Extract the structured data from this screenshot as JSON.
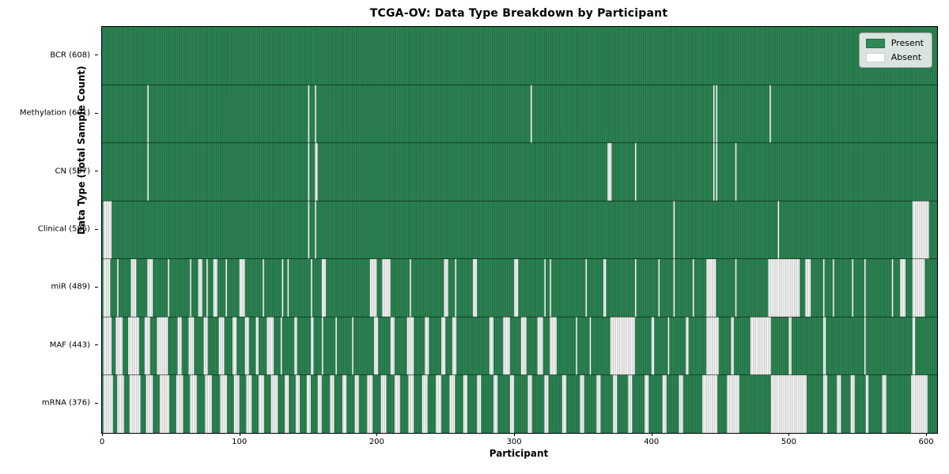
{
  "title": "TCGA-OV: Data Type Breakdown by Participant",
  "chart_data": {
    "type": "heatmap",
    "title": "TCGA-OV: Data Type Breakdown by Participant",
    "xlabel": "Participant",
    "ylabel": "Data Type (Total Sample Count)",
    "x_ticks": [
      0,
      100,
      200,
      300,
      400,
      500,
      600
    ],
    "x_range": [
      0,
      608
    ],
    "n_participants": 608,
    "grid": false,
    "legend": {
      "position": "upper right",
      "present_label": "Present",
      "absent_label": "Absent"
    },
    "colors": {
      "present": "#2e8b57",
      "absent": "#ffffff",
      "cell_edge": "rgba(0,0,0,0.38)",
      "row_separator": "rgba(0,0,0,0.85)",
      "legend_bg": "#eaedea"
    },
    "rows": [
      {
        "label": "BCR (608)",
        "name": "BCR",
        "present_count": 608,
        "absent_ranges": []
      },
      {
        "label": "Methylation (601)",
        "name": "Methylation",
        "present_count": 601,
        "absent_ranges": [
          [
            33,
            33
          ],
          [
            150,
            150
          ],
          [
            155,
            155
          ],
          [
            312,
            312
          ],
          [
            445,
            445
          ],
          [
            447,
            447
          ],
          [
            486,
            486
          ]
        ]
      },
      {
        "label": "CN (597)",
        "name": "CN",
        "present_count": 597,
        "absent_ranges": [
          [
            33,
            33
          ],
          [
            150,
            150
          ],
          [
            155,
            156
          ],
          [
            368,
            370
          ],
          [
            388,
            388
          ],
          [
            445,
            445
          ],
          [
            447,
            447
          ],
          [
            461,
            461
          ]
        ]
      },
      {
        "label": "Clinical (586)",
        "name": "Clinical",
        "present_count": 586,
        "absent_ranges": [
          [
            1,
            6
          ],
          [
            150,
            150
          ],
          [
            155,
            155
          ],
          [
            416,
            416
          ],
          [
            492,
            492
          ],
          [
            590,
            601
          ]
        ]
      },
      {
        "label": "miR (489)",
        "name": "miR",
        "present_count": 489,
        "absent_ranges": [
          [
            1,
            5
          ],
          [
            11,
            11
          ],
          [
            21,
            24
          ],
          [
            33,
            36
          ],
          [
            48,
            48
          ],
          [
            64,
            64
          ],
          [
            70,
            72
          ],
          [
            76,
            76
          ],
          [
            81,
            83
          ],
          [
            90,
            90
          ],
          [
            100,
            103
          ],
          [
            117,
            117
          ],
          [
            131,
            131
          ],
          [
            135,
            135
          ],
          [
            152,
            152
          ],
          [
            160,
            162
          ],
          [
            195,
            199
          ],
          [
            204,
            209
          ],
          [
            224,
            224
          ],
          [
            249,
            251
          ],
          [
            257,
            257
          ],
          [
            270,
            272
          ],
          [
            300,
            302
          ],
          [
            322,
            322
          ],
          [
            326,
            326
          ],
          [
            352,
            352
          ],
          [
            365,
            366
          ],
          [
            388,
            388
          ],
          [
            405,
            405
          ],
          [
            416,
            416
          ],
          [
            430,
            430
          ],
          [
            440,
            446
          ],
          [
            461,
            461
          ],
          [
            485,
            507
          ],
          [
            512,
            515
          ],
          [
            525,
            525
          ],
          [
            532,
            532
          ],
          [
            546,
            546
          ],
          [
            555,
            555
          ],
          [
            575,
            575
          ],
          [
            581,
            584
          ],
          [
            590,
            598
          ]
        ]
      },
      {
        "label": "MAF (443)",
        "name": "MAF",
        "present_count": 443,
        "absent_ranges": [
          [
            1,
            6
          ],
          [
            10,
            14
          ],
          [
            19,
            26
          ],
          [
            31,
            34
          ],
          [
            40,
            47
          ],
          [
            55,
            57
          ],
          [
            63,
            66
          ],
          [
            74,
            76
          ],
          [
            85,
            88
          ],
          [
            95,
            97
          ],
          [
            104,
            106
          ],
          [
            112,
            113
          ],
          [
            120,
            124
          ],
          [
            130,
            130
          ],
          [
            140,
            141
          ],
          [
            152,
            153
          ],
          [
            160,
            160
          ],
          [
            170,
            170
          ],
          [
            182,
            182
          ],
          [
            198,
            200
          ],
          [
            210,
            212
          ],
          [
            222,
            226
          ],
          [
            235,
            237
          ],
          [
            247,
            249
          ],
          [
            255,
            257
          ],
          [
            282,
            284
          ],
          [
            292,
            296
          ],
          [
            305,
            308
          ],
          [
            317,
            320
          ],
          [
            326,
            330
          ],
          [
            345,
            345
          ],
          [
            355,
            355
          ],
          [
            370,
            387
          ],
          [
            400,
            401
          ],
          [
            412,
            412
          ],
          [
            425,
            426
          ],
          [
            440,
            448
          ],
          [
            458,
            459
          ],
          [
            472,
            486
          ],
          [
            500,
            501
          ],
          [
            525,
            526
          ],
          [
            555,
            555
          ],
          [
            590,
            591
          ]
        ]
      },
      {
        "label": "mRNA (376)",
        "name": "mRNA",
        "present_count": 376,
        "absent_ranges": [
          [
            1,
            7
          ],
          [
            11,
            15
          ],
          [
            20,
            27
          ],
          [
            32,
            36
          ],
          [
            42,
            48
          ],
          [
            54,
            58
          ],
          [
            64,
            68
          ],
          [
            75,
            79
          ],
          [
            86,
            90
          ],
          [
            96,
            99
          ],
          [
            105,
            108
          ],
          [
            114,
            117
          ],
          [
            123,
            127
          ],
          [
            133,
            135
          ],
          [
            141,
            143
          ],
          [
            149,
            151
          ],
          [
            157,
            159
          ],
          [
            166,
            168
          ],
          [
            175,
            177
          ],
          [
            184,
            186
          ],
          [
            193,
            196
          ],
          [
            203,
            206
          ],
          [
            213,
            216
          ],
          [
            223,
            226
          ],
          [
            233,
            236
          ],
          [
            243,
            246
          ],
          [
            253,
            256
          ],
          [
            263,
            265
          ],
          [
            273,
            275
          ],
          [
            285,
            287
          ],
          [
            297,
            299
          ],
          [
            310,
            312
          ],
          [
            322,
            324
          ],
          [
            335,
            337
          ],
          [
            348,
            350
          ],
          [
            360,
            362
          ],
          [
            372,
            374
          ],
          [
            383,
            385
          ],
          [
            395,
            397
          ],
          [
            408,
            410
          ],
          [
            420,
            422
          ],
          [
            437,
            447
          ],
          [
            455,
            463
          ],
          [
            487,
            512
          ],
          [
            525,
            527
          ],
          [
            535,
            537
          ],
          [
            545,
            547
          ],
          [
            556,
            557
          ],
          [
            568,
            570
          ],
          [
            589,
            600
          ]
        ]
      }
    ]
  }
}
